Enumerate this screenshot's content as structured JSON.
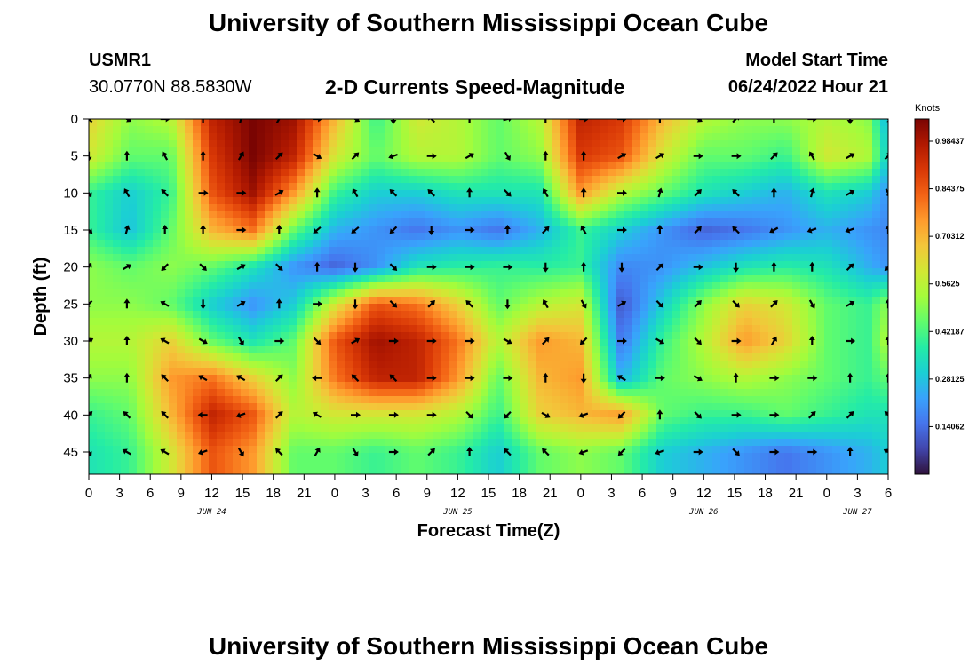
{
  "header": {
    "title": "University of Southern Mississippi Ocean Cube",
    "station_id": "USMR1",
    "coordinates": "30.0770N  88.5830W",
    "chart_title": "2-D Currents Speed-Magnitude",
    "model_start_label": "Model Start Time",
    "model_start_value": "06/24/2022 Hour 21"
  },
  "footer": {
    "title": "University of Southern Mississippi Ocean Cube"
  },
  "colors": {
    "map": [
      "#30123b",
      "#4145ab",
      "#4675ed",
      "#39a2fc",
      "#1bcfd4",
      "#24eca6",
      "#61fc6c",
      "#a4fc3b",
      "#d1e834",
      "#f3c63a",
      "#fe9b2d",
      "#f36315",
      "#d93806",
      "#b11901",
      "#7a0402"
    ]
  },
  "chart_data": {
    "type": "heatmap",
    "xlabel": "Forecast Time(Z)",
    "ylabel": "Depth (ft)",
    "x_tick_labels": [
      "0",
      "3",
      "6",
      "9",
      "12",
      "15",
      "18",
      "21",
      "0",
      "3",
      "6",
      "9",
      "12",
      "15",
      "18",
      "21",
      "0",
      "3",
      "6",
      "9",
      "12",
      "15",
      "18",
      "21",
      "0",
      "3",
      "6"
    ],
    "x_range_hours": [
      0,
      78
    ],
    "date_labels": [
      {
        "label": "JUN 24",
        "hour": 12
      },
      {
        "label": "JUN 25",
        "hour": 36
      },
      {
        "label": "JUN 26",
        "hour": 60
      },
      {
        "label": "JUN 27",
        "hour": 75
      }
    ],
    "y_ticks": [
      0,
      5,
      10,
      15,
      20,
      25,
      30,
      35,
      40,
      45
    ],
    "y_range": [
      0,
      48
    ],
    "colorbar": {
      "title": "Knots",
      "tick_labels": [
        "0.98437",
        "0.84375",
        "0.70312",
        "0.5625",
        "0.42187",
        "0.28125",
        "0.14062"
      ],
      "tick_values": [
        0.98437,
        0.84375,
        0.70312,
        0.5625,
        0.42187,
        0.28125,
        0.14062
      ],
      "range": [
        0,
        1.05
      ]
    },
    "depths": [
      0,
      5,
      10,
      15,
      20,
      25,
      30,
      35,
      40,
      45
    ],
    "hours": [
      0,
      4,
      8,
      12,
      16,
      20,
      24,
      28,
      32,
      36,
      40,
      44,
      48,
      52,
      56,
      60,
      64,
      68,
      72,
      76,
      78
    ],
    "speed": [
      [
        0.65,
        0.5,
        0.55,
        0.95,
        1.05,
        1.0,
        0.7,
        0.4,
        0.6,
        0.55,
        0.45,
        0.55,
        0.95,
        0.9,
        0.7,
        0.55,
        0.5,
        0.5,
        0.55,
        0.5,
        0.25
      ],
      [
        0.6,
        0.45,
        0.45,
        0.9,
        1.05,
        0.95,
        0.6,
        0.45,
        0.55,
        0.55,
        0.45,
        0.5,
        0.9,
        0.85,
        0.6,
        0.45,
        0.45,
        0.4,
        0.6,
        0.55,
        0.3
      ],
      [
        0.4,
        0.3,
        0.4,
        0.85,
        1.0,
        0.75,
        0.4,
        0.3,
        0.3,
        0.35,
        0.35,
        0.35,
        0.75,
        0.55,
        0.45,
        0.35,
        0.3,
        0.25,
        0.35,
        0.3,
        0.2
      ],
      [
        0.4,
        0.28,
        0.45,
        0.7,
        0.8,
        0.45,
        0.25,
        0.2,
        0.15,
        0.2,
        0.15,
        0.25,
        0.4,
        0.3,
        0.2,
        0.12,
        0.15,
        0.2,
        0.25,
        0.2,
        0.18
      ],
      [
        0.5,
        0.45,
        0.5,
        0.45,
        0.35,
        0.2,
        0.12,
        0.2,
        0.35,
        0.38,
        0.4,
        0.38,
        0.4,
        0.18,
        0.2,
        0.28,
        0.35,
        0.38,
        0.35,
        0.25,
        0.2
      ],
      [
        0.5,
        0.5,
        0.45,
        0.3,
        0.2,
        0.3,
        0.6,
        0.85,
        0.8,
        0.65,
        0.45,
        0.55,
        0.6,
        0.1,
        0.3,
        0.5,
        0.65,
        0.6,
        0.45,
        0.4,
        0.5
      ],
      [
        0.55,
        0.55,
        0.65,
        0.45,
        0.35,
        0.45,
        0.85,
        1.0,
        0.95,
        0.8,
        0.55,
        0.75,
        0.7,
        0.15,
        0.4,
        0.55,
        0.75,
        0.65,
        0.45,
        0.4,
        0.55
      ],
      [
        0.5,
        0.5,
        0.75,
        0.8,
        0.65,
        0.5,
        0.8,
        0.95,
        0.95,
        0.75,
        0.45,
        0.7,
        0.75,
        0.25,
        0.45,
        0.5,
        0.55,
        0.5,
        0.45,
        0.4,
        0.45
      ],
      [
        0.4,
        0.45,
        0.7,
        0.95,
        0.85,
        0.55,
        0.6,
        0.6,
        0.6,
        0.55,
        0.4,
        0.65,
        0.7,
        0.75,
        0.45,
        0.4,
        0.4,
        0.45,
        0.4,
        0.35,
        0.35
      ],
      [
        0.35,
        0.4,
        0.6,
        0.85,
        0.75,
        0.45,
        0.45,
        0.4,
        0.45,
        0.4,
        0.3,
        0.45,
        0.5,
        0.45,
        0.3,
        0.25,
        0.2,
        0.15,
        0.2,
        0.25,
        0.3
      ]
    ],
    "arrows": [
      [
        135,
        330,
        0,
        90,
        75,
        60,
        0,
        330,
        270,
        135,
        90,
        15,
        90,
        0,
        0,
        90,
        330,
        45,
        90,
        0,
        270,
        315
      ],
      [
        270,
        90,
        120,
        90,
        60,
        45,
        330,
        45,
        200,
        0,
        30,
        300,
        90,
        90,
        30,
        30,
        0,
        0,
        45,
        120,
        30,
        45
      ],
      [
        300,
        120,
        135,
        0,
        0,
        30,
        90,
        120,
        135,
        135,
        90,
        315,
        120,
        90,
        0,
        75,
        45,
        135,
        90,
        75,
        30,
        300
      ],
      [
        315,
        75,
        90,
        90,
        0,
        90,
        220,
        220,
        225,
        270,
        0,
        90,
        45,
        120,
        0,
        90,
        45,
        135,
        210,
        200,
        200,
        90
      ],
      [
        60,
        30,
        225,
        315,
        30,
        315,
        90,
        270,
        315,
        0,
        0,
        0,
        270,
        90,
        270,
        45,
        0,
        270,
        90,
        90,
        45,
        225
      ],
      [
        225,
        90,
        150,
        270,
        30,
        90,
        0,
        270,
        315,
        45,
        135,
        270,
        120,
        300,
        30,
        315,
        45,
        315,
        45,
        300,
        30,
        90
      ],
      [
        30,
        90,
        150,
        330,
        300,
        0,
        315,
        30,
        0,
        0,
        0,
        330,
        45,
        225,
        0,
        330,
        315,
        0,
        60,
        90,
        0,
        90
      ],
      [
        60,
        90,
        135,
        150,
        150,
        45,
        180,
        135,
        135,
        0,
        0,
        0,
        90,
        270,
        150,
        0,
        330,
        90,
        0,
        0,
        90,
        90
      ],
      [
        45,
        135,
        135,
        180,
        200,
        45,
        150,
        0,
        0,
        0,
        315,
        225,
        330,
        200,
        225,
        90,
        315,
        0,
        0,
        45,
        45,
        135
      ],
      [
        300,
        150,
        150,
        200,
        300,
        135,
        60,
        300,
        0,
        45,
        90,
        135,
        135,
        200,
        225,
        200,
        0,
        315,
        0,
        0,
        90,
        150
      ]
    ]
  }
}
